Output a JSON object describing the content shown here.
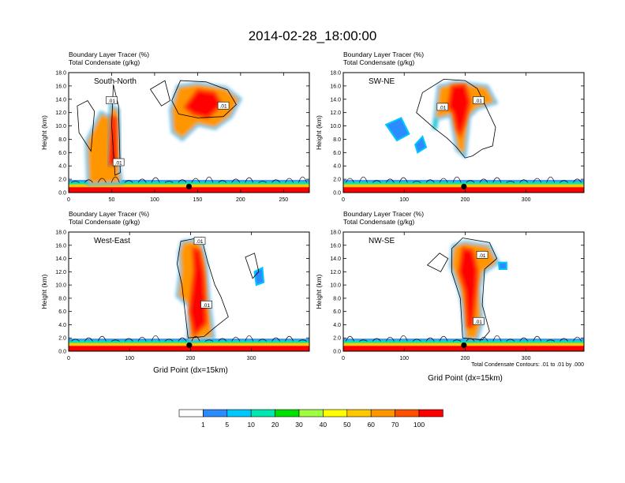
{
  "title": "2014-02-28_18:00:00",
  "chart_data": [
    {
      "type": "heatmap",
      "subtitle_lines": [
        "Boundary Layer Tracer   (%)",
        "Total Condensate   (g/kg)"
      ],
      "panel_label": "South-North",
      "ylabel": "Height (km)",
      "xlabel": "",
      "xlim": [
        0,
        280
      ],
      "ylim": [
        0,
        18
      ],
      "xticks": [
        0,
        50,
        100,
        150,
        200,
        250
      ],
      "yticks": [
        "0.0",
        "2.0",
        "4.0",
        "6.0",
        "8.0",
        "10.0",
        "12.0",
        "14.0",
        "16.0",
        "18.0"
      ],
      "contour_labels": [
        ".01",
        ".01",
        ".01"
      ],
      "marker_x": 140,
      "footnote": ""
    },
    {
      "type": "heatmap",
      "subtitle_lines": [
        "Boundary Layer Tracer   (%)",
        "Total Condensate   (g/kg)"
      ],
      "panel_label": "SW-NE",
      "ylabel": "Height (km)",
      "xlabel": "",
      "xlim": [
        0,
        395
      ],
      "ylim": [
        0,
        18
      ],
      "xticks": [
        0,
        100,
        200,
        300
      ],
      "yticks": [
        "0.0",
        "2.0",
        "4.0",
        "6.0",
        "8.0",
        "10.0",
        "12.0",
        "14.0",
        "16.0",
        "18.0"
      ],
      "contour_labels": [
        ".01",
        ".01"
      ],
      "marker_x": 198,
      "footnote": ""
    },
    {
      "type": "heatmap",
      "subtitle_lines": [
        "Boundary Layer Tracer   (%)",
        "Total Condensate   (g/kg)"
      ],
      "panel_label": "West-East",
      "ylabel": "Height (km)",
      "xlabel": "Grid Point (dx=15km)",
      "xlim": [
        0,
        395
      ],
      "ylim": [
        0,
        18
      ],
      "xticks": [
        0,
        100,
        200,
        300
      ],
      "yticks": [
        "0.0",
        "2.0",
        "4.0",
        "6.0",
        "8.0",
        "10.0",
        "12.0",
        "14.0",
        "16.0",
        "18.0"
      ],
      "contour_labels": [
        ".01",
        ".01"
      ],
      "marker_x": 198,
      "footnote": ""
    },
    {
      "type": "heatmap",
      "subtitle_lines": [
        "Boundary Layer Tracer   (%)",
        "Total Condensate   (g/kg)"
      ],
      "panel_label": "NW-SE",
      "ylabel": "Height (km)",
      "xlabel": "Grid Point (dx=15km)",
      "xlim": [
        0,
        395
      ],
      "ylim": [
        0,
        18
      ],
      "xticks": [
        0,
        100,
        200,
        300
      ],
      "yticks": [
        "0.0",
        "2.0",
        "4.0",
        "6.0",
        "8.0",
        "10.0",
        "12.0",
        "14.0",
        "16.0",
        "18.0"
      ],
      "contour_labels": [
        ".01",
        ".01"
      ],
      "marker_x": 198,
      "footnote": "Total Condensate Contours: .01 to .01 by .000"
    }
  ],
  "colorbar": {
    "labels": [
      "1",
      "5",
      "10",
      "20",
      "30",
      "40",
      "50",
      "60",
      "70",
      "100"
    ],
    "colors": [
      "#ffffff",
      "#2a8cff",
      "#00c8ff",
      "#00e8b0",
      "#00e000",
      "#a0ff40",
      "#ffff00",
      "#ffc800",
      "#ff9600",
      "#ff5000",
      "#ff0000"
    ]
  }
}
